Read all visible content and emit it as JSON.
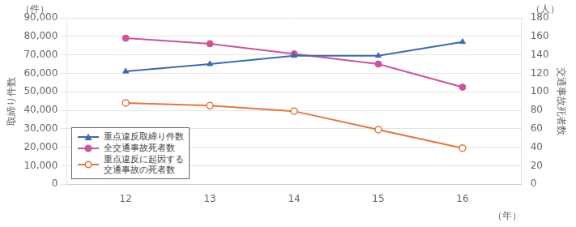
{
  "chart_data": {
    "type": "line",
    "x": [
      12,
      13,
      14,
      15,
      16
    ],
    "xlim": [
      11.3,
      16.7
    ],
    "xticks": [
      12,
      13,
      14,
      15,
      16
    ],
    "x_label": "（年）",
    "y_label": "取締り件数",
    "y2_label": "交通事故死者数",
    "annotations": [
      "（件）",
      "（人）"
    ],
    "ylim": [
      0,
      90000
    ],
    "yticks": [
      0,
      {
        "value": 10000,
        "label": "10,000"
      },
      {
        "value": 20000,
        "label": "20,000"
      },
      {
        "value": 30000,
        "label": "30,000"
      },
      {
        "value": 40000,
        "label": "40,000"
      },
      {
        "value": 50000,
        "label": "50,000"
      },
      {
        "value": 60000,
        "label": "60,000"
      },
      {
        "value": 70000,
        "label": "70,000"
      },
      {
        "value": 80000,
        "label": "80,000"
      },
      {
        "value": 90000,
        "label": "90,000"
      }
    ],
    "y2lim": [
      0,
      180
    ],
    "y2ticks": [
      0,
      20,
      40,
      60,
      80,
      100,
      120,
      140,
      160,
      180
    ],
    "grid": "y",
    "legend": "lower left",
    "series": [
      {
        "name": "重点違反取締り件数",
        "color": "#4169ae",
        "marker": "triangle",
        "values": [
          61000,
          65000,
          69500,
          69500,
          77000
        ]
      },
      {
        "name": "全交通事故死者数",
        "color": "#cc5599",
        "marker": "circle",
        "axis": "y2",
        "values": [
          158,
          152,
          141,
          130,
          105
        ]
      },
      {
        "name": "重点違反に起因する\n交通事故の死者数",
        "color": "#e07840",
        "marker": "open_circle",
        "axis": "y2",
        "values": [
          88,
          85,
          79,
          59,
          39
        ]
      }
    ]
  }
}
